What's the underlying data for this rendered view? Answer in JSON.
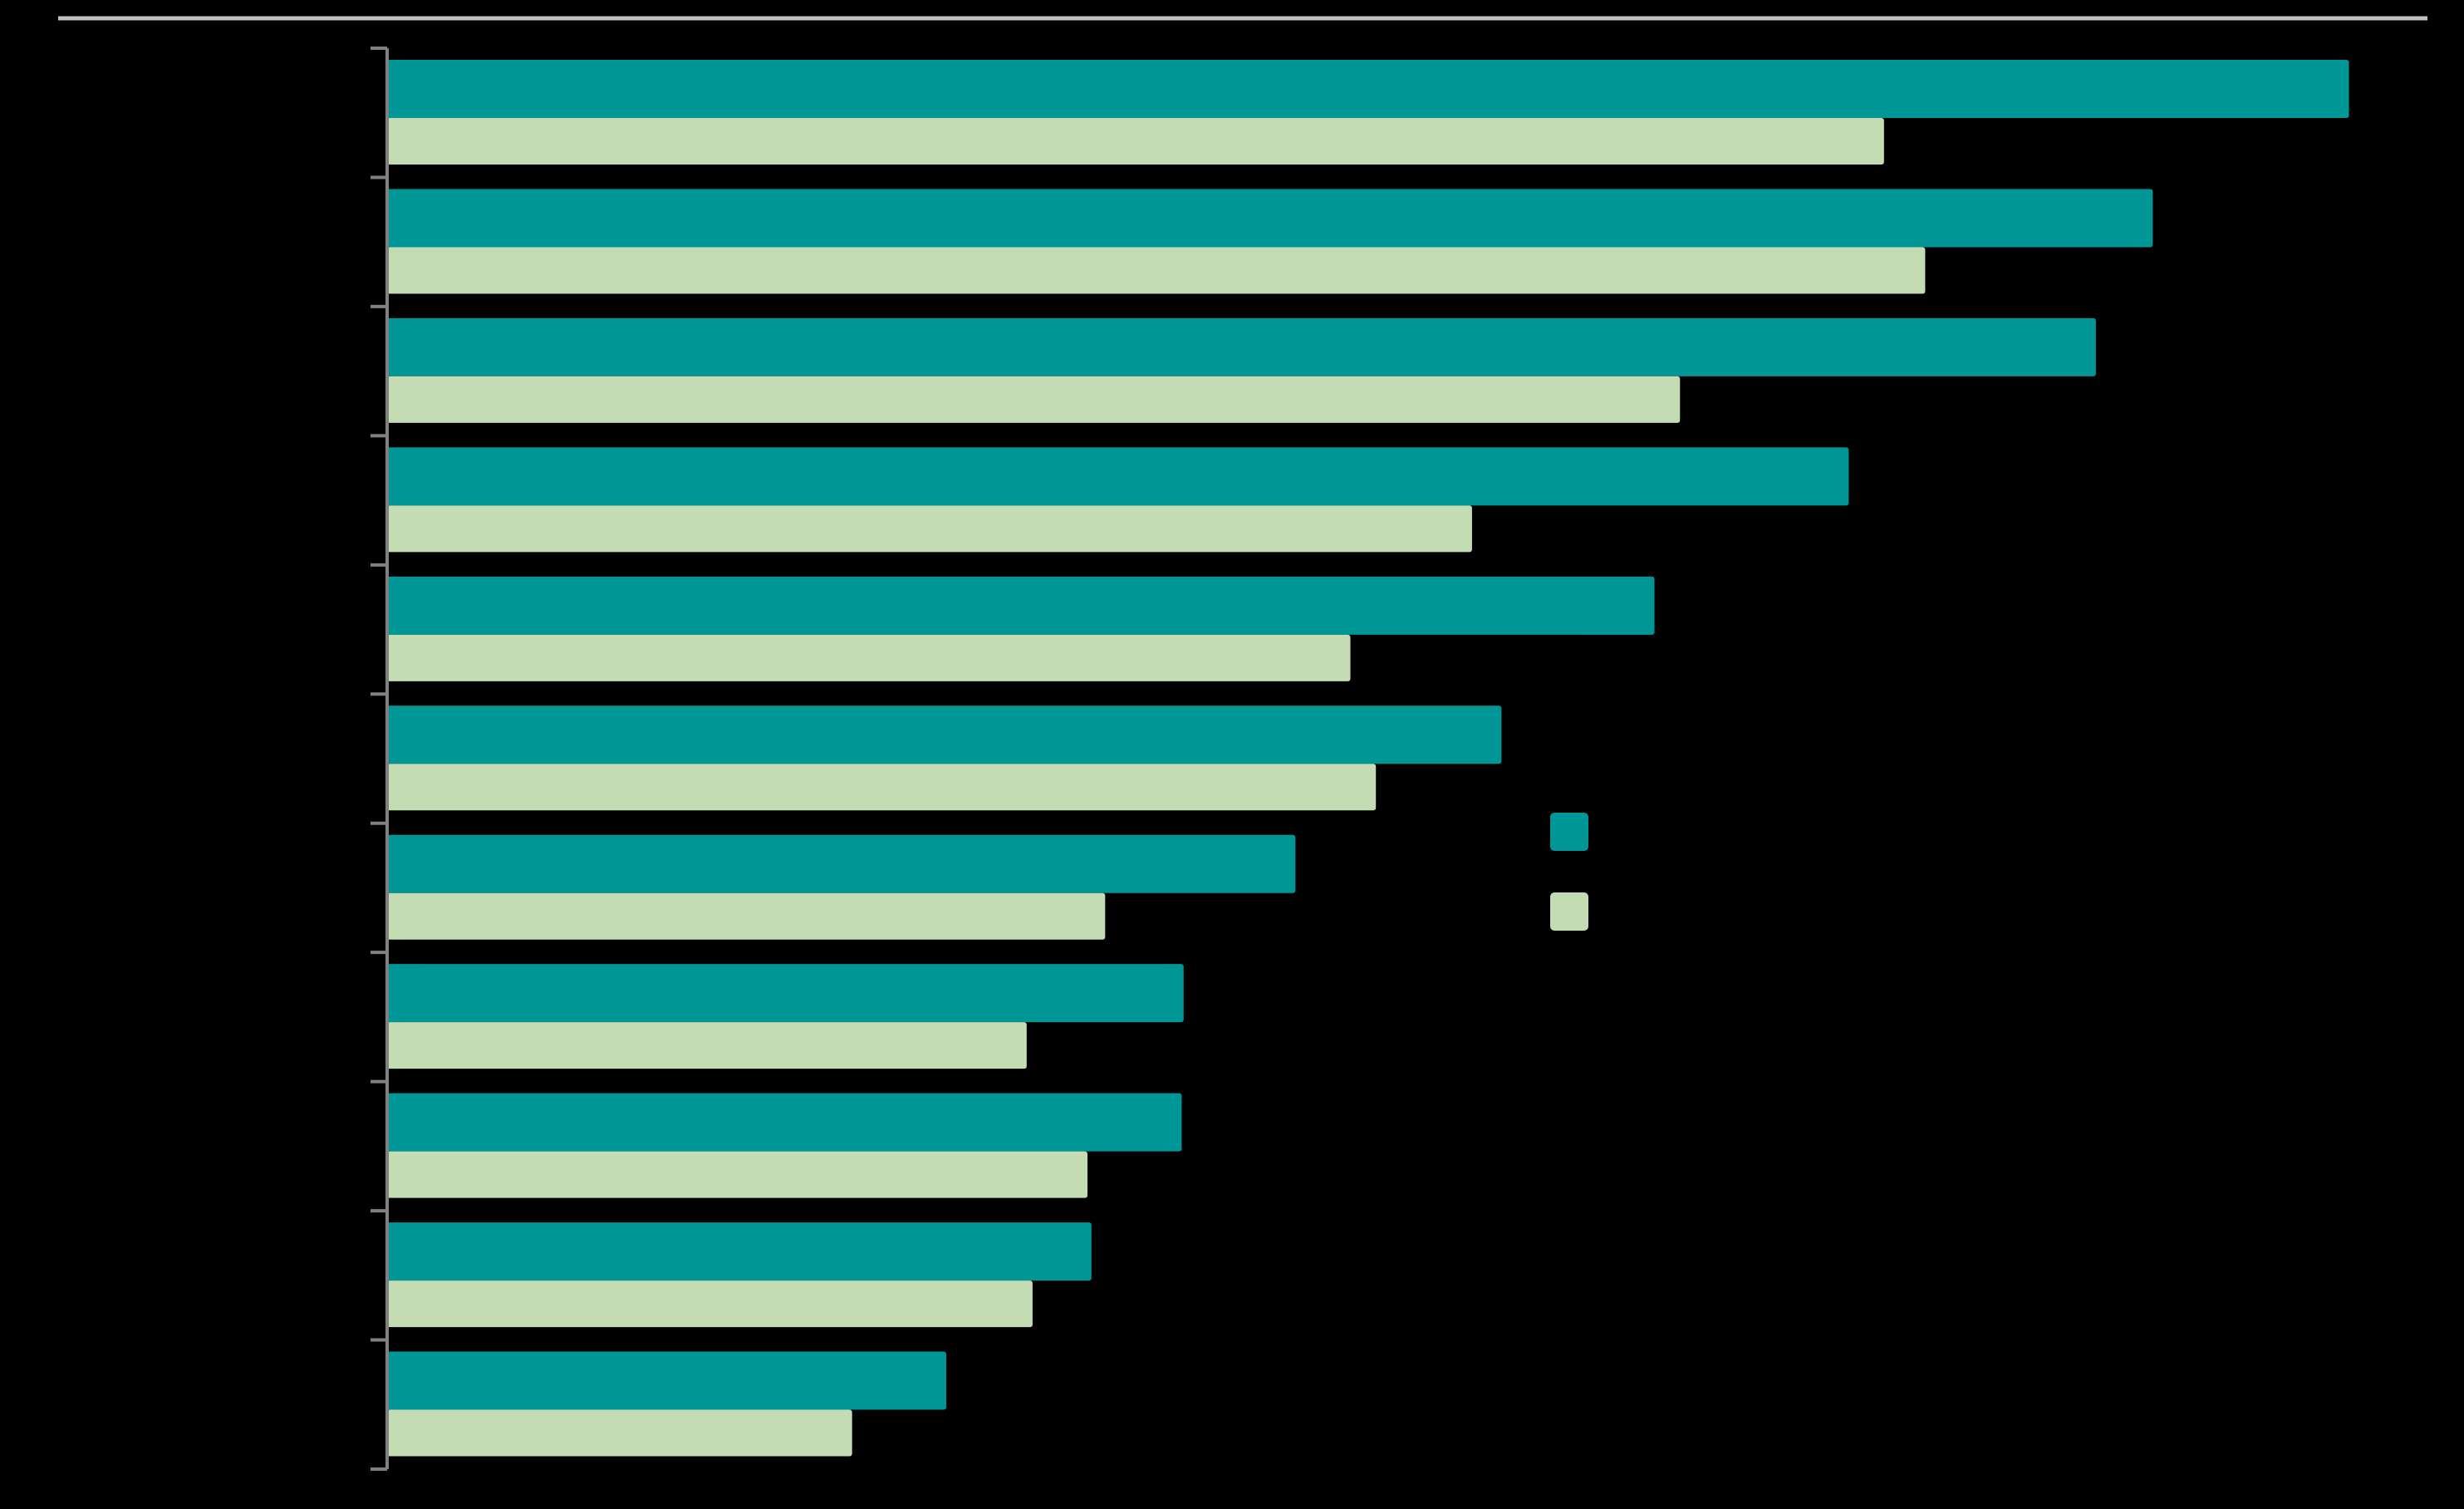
{
  "chart_data": {
    "type": "bar",
    "orientation": "horizontal",
    "title": "",
    "xlabel": "",
    "ylabel": "",
    "categories": [
      "",
      "",
      "",
      "",
      "",
      "",
      "",
      "",
      "",
      "",
      ""
    ],
    "series": [
      {
        "color": "#009696",
        "values": [
          100,
          90,
          87.1,
          74.5,
          64.6,
          56.8,
          46.3,
          40.6,
          40.5,
          35.9,
          28.5
        ]
      },
      {
        "color": "#c4dcb4",
        "values": [
          76.3,
          78.4,
          65.9,
          55.3,
          49.1,
          50.4,
          36.6,
          32.6,
          35.7,
          32.9,
          23.7
        ]
      }
    ],
    "xlim": [
      0,
      104
    ],
    "grid": false,
    "legend": {
      "placement": "center-right"
    }
  },
  "colors": {
    "background": "#000000",
    "axis": "#808080",
    "top_rule": "#c0c0c0"
  }
}
